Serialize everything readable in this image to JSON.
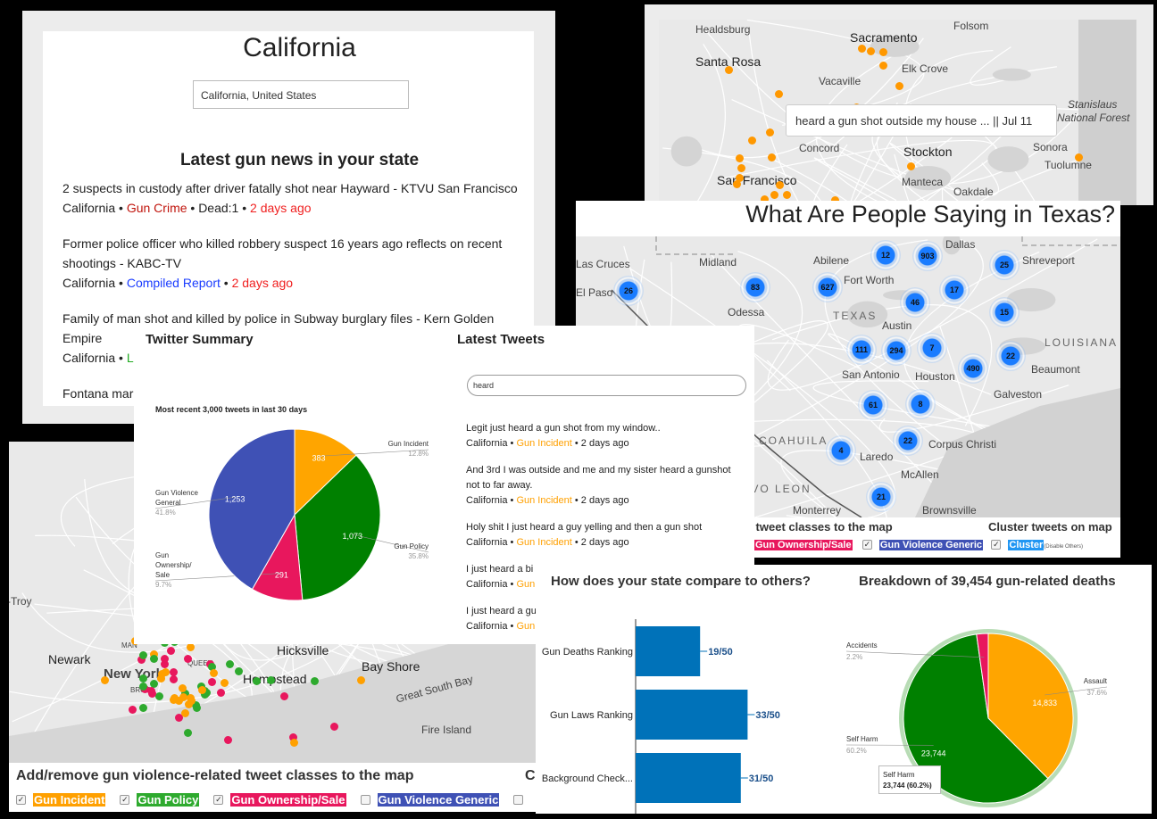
{
  "california_news": {
    "state_title": "California",
    "location_input_value": "California, United States",
    "section_title": "Latest gun news in your state",
    "items": [
      {
        "headline": "2 suspects in custody after driver fatally shot near Hayward - KTVU San Francisco",
        "state": "California",
        "category": "Gun Crime",
        "category_color": "#c0140c",
        "extra": "• Dead:1 •",
        "age": "2 days ago"
      },
      {
        "headline": "Former police officer who killed robbery suspect 16 years ago reflects on recent shootings - KABC-TV",
        "state": "California",
        "category": "Compiled Report",
        "category_color": "#1a3cff",
        "extra": "•",
        "age": "2 days ago"
      },
      {
        "headline": "Family of man shot and killed by police in Subway burglary files - Kern Golden Empire",
        "state": "California",
        "category": "L",
        "category_color": "#22aa22",
        "extra": "",
        "age": ""
      },
      {
        "headline": "Fontana mar",
        "state": "",
        "category": "",
        "category_color": "",
        "extra": "",
        "age": ""
      }
    ]
  },
  "california_map": {
    "cities": [
      "Healdsburg",
      "Sacramento",
      "Folsom",
      "Santa Rosa",
      "Elk Crove",
      "Vacaville",
      "Stanislaus",
      "National Forest",
      "Concord",
      "Stockton",
      "Sonora",
      "Tuolumne",
      "San Francisco",
      "Manteca",
      "Oakdale"
    ],
    "tooltip": "heard a gun shot outside my house ... || Jul 11"
  },
  "texas_map": {
    "title": "What Are People Saying in Texas?",
    "cities": [
      "Las Cruces",
      "El Paso",
      "Midland",
      "Odessa",
      "Abilene",
      "Fort Worth",
      "Dallas",
      "Shreveport",
      "Austin",
      "San Antonio",
      "Houston",
      "Beaumont",
      "Galveston",
      "Corpus Christi",
      "Laredo",
      "Monterrey",
      "McAllen",
      "Brownsville"
    ],
    "regions": [
      "TEXAS",
      "LOUISIANA",
      "COAHUILA",
      "NUEVO LEON"
    ],
    "clusters": [
      "26",
      "83",
      "627",
      "12",
      "903",
      "25",
      "46",
      "17",
      "15",
      "111",
      "294",
      "7",
      "22",
      "490",
      "61",
      "8",
      "22",
      "4",
      "21"
    ],
    "controls": {
      "classes_title": "d tweet classes to the map",
      "cluster_title": "Cluster tweets on map",
      "chips": [
        {
          "label": "Gun Ownership/Sale",
          "color": "#e8175d",
          "checked": true
        },
        {
          "label": "Gun Violence Generic",
          "color": "#3f51b5",
          "checked": true
        }
      ],
      "cluster_label": "Cluster",
      "cluster_color": "#2196f3",
      "cluster_note": "(Disable Others)",
      "cluster_checked": true
    }
  },
  "ny_map": {
    "cities": [
      "-Troy",
      "Newark",
      "New York",
      "Hicksville",
      "Hempstead",
      "Bay Shore",
      "Great South Bay",
      "Fire Island",
      "MAN",
      "QUEEN",
      "BROO"
    ],
    "controls": {
      "title": "Add/remove gun violence-related tweet classes to the map",
      "trailing": "C",
      "chips": [
        {
          "label": "Gun Incident",
          "color": "#ffa000",
          "checked": true
        },
        {
          "label": "Gun Policy",
          "color": "#2eaa2e",
          "checked": true
        },
        {
          "label": "Gun Ownership/Sale",
          "color": "#e8175d",
          "checked": true
        },
        {
          "label": "Gun Violence Generic",
          "color": "#3f51b5",
          "checked": false
        }
      ]
    }
  },
  "twitter_summary": {
    "title": "Twitter Summary",
    "latest_title": "Latest Tweets",
    "search_value": "heard",
    "tweets": [
      {
        "text": "Legit just heard a gun shot from my window..",
        "state": "California",
        "category": "Gun Incident",
        "age": "• 2 days ago"
      },
      {
        "text": "And 3rd I was outside and me and my sister heard a gunshot not to far away.",
        "state": "California",
        "category": "Gun Incident",
        "age": "• 2 days ago"
      },
      {
        "text": "Holy shit I just heard a guy yelling and then a gun shot",
        "state": "California",
        "category": "Gun Incident",
        "age": "• 2 days ago"
      },
      {
        "text": "I just heard a bi",
        "state": "California",
        "category": "Gun",
        "age": ""
      },
      {
        "text": "I just heard a gu",
        "state": "California",
        "category": "Gun",
        "age": ""
      }
    ]
  },
  "compare": {
    "title": "How does your state compare to others?",
    "breakdown_title": "Breakdown of 39,454 gun-related deaths"
  },
  "chart_data": [
    {
      "type": "pie",
      "title": "Most recent 3,000 tweets in last 30 days",
      "categories": [
        "Gun Incident",
        "Gun Policy",
        "Gun Ownership/ Sale",
        "Gun Violence General"
      ],
      "values": [
        383,
        1073,
        291,
        1253
      ],
      "value_labels": [
        "383",
        "1,073",
        "291",
        "1,253"
      ],
      "percent_labels": [
        "12.8%",
        "35.8%",
        "9.7%",
        "41.8%"
      ],
      "colors": [
        "#ffa500",
        "#008000",
        "#e8175d",
        "#3f51b5"
      ]
    },
    {
      "type": "bar",
      "orientation": "horizontal",
      "categories": [
        "Gun Deaths Ranking",
        "Gun Laws Ranking",
        "Background Check..."
      ],
      "values": [
        19,
        33,
        31
      ],
      "value_labels": [
        "19/50",
        "33/50",
        "31/50"
      ],
      "xlim": [
        0,
        50
      ],
      "color": "#0072b9"
    },
    {
      "type": "pie",
      "title": "Breakdown of 39,454 gun-related deaths",
      "categories": [
        "Assault",
        "Self Harm",
        "Accidents"
      ],
      "values": [
        14833,
        23744,
        877
      ],
      "value_labels": [
        "14,833",
        "23,744",
        ""
      ],
      "percent_labels": [
        "37.6%",
        "60.2%",
        "2.2%"
      ],
      "colors": [
        "#ffa500",
        "#008000",
        "#e8175d"
      ],
      "tooltip": {
        "title": "Self Harm",
        "value": "23,744 (60.2%)"
      }
    }
  ]
}
